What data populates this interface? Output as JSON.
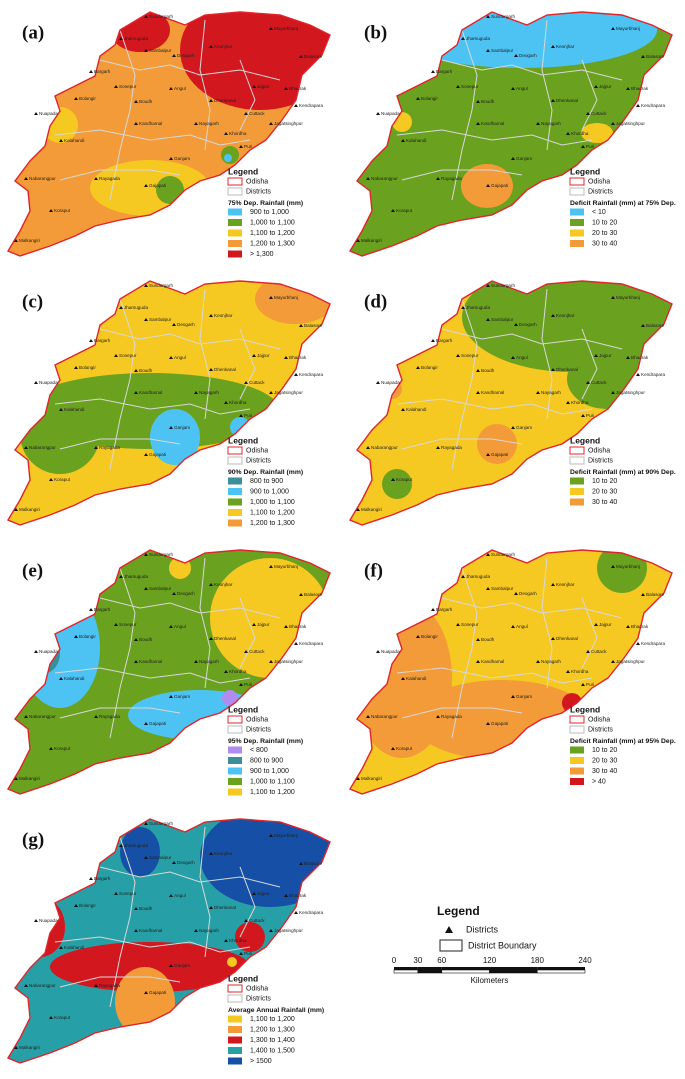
{
  "legend": {
    "title": "Legend",
    "odisha": "Odisha",
    "districts": "Districts"
  },
  "districts": [
    "Sundargarh",
    "Jharsuguda",
    "Sambalpur",
    "Deogarh",
    "Keonjhar",
    "Mayurbhanj",
    "Balasore",
    "Bargarh",
    "Sonepur",
    "Angul",
    "Dhenkanal",
    "Jajpur",
    "Bhadrak",
    "Kendrapara",
    "Bolangir",
    "Boudh",
    "Cuttack",
    "Jagatsinghpur",
    "Nuapada",
    "Kandhamal",
    "Nayagarh",
    "Khordha",
    "Puri",
    "Kalahandi",
    "Ganjam",
    "Nabarangpur",
    "Rayagada",
    "Gajapati",
    "Koraput",
    "Malkangiri"
  ],
  "panels": [
    {
      "label": "(a)",
      "title": "75% Dep. Rainfall (mm)",
      "classes": [
        {
          "label": "900 to 1,000",
          "color": "#4cc3f2"
        },
        {
          "label": "1,000 to 1,100",
          "color": "#6aa11f"
        },
        {
          "label": "1,100 to 1,200",
          "color": "#f6c922"
        },
        {
          "label": "1,200 to 1,300",
          "color": "#f29b38"
        },
        {
          "label": "> 1,300",
          "color": "#d3171f"
        }
      ]
    },
    {
      "label": "(b)",
      "title": "Deficit Rainfall (mm) at 75% Dep.",
      "classes": [
        {
          "label": "< 10",
          "color": "#4cc3f2"
        },
        {
          "label": "10 to 20",
          "color": "#6aa11f"
        },
        {
          "label": "20 to 30",
          "color": "#f6c922"
        },
        {
          "label": "30 to 40",
          "color": "#f29b38"
        }
      ]
    },
    {
      "label": "(c)",
      "title": "90% Dep. Rainfall (mm)",
      "classes": [
        {
          "label": "800 to 900",
          "color": "#3a8f9a"
        },
        {
          "label": "900 to 1,000",
          "color": "#4cc3f2"
        },
        {
          "label": "1,000 to 1,100",
          "color": "#6aa11f"
        },
        {
          "label": "1,100 to 1,200",
          "color": "#f6c922"
        },
        {
          "label": "1,200 to 1,300",
          "color": "#f29b38"
        }
      ]
    },
    {
      "label": "(d)",
      "title": "Deficit Rainfall (mm) at 90% Dep.",
      "classes": [
        {
          "label": "10 to 20",
          "color": "#6aa11f"
        },
        {
          "label": "20 to 30",
          "color": "#f6c922"
        },
        {
          "label": "30 to 40",
          "color": "#f29b38"
        }
      ]
    },
    {
      "label": "(e)",
      "title": "95% Dep. Rainfall (mm)",
      "classes": [
        {
          "label": "< 800",
          "color": "#b08cf0"
        },
        {
          "label": "800 to 900",
          "color": "#3a8f9a"
        },
        {
          "label": "900 to 1,000",
          "color": "#4cc3f2"
        },
        {
          "label": "1,000 to 1,100",
          "color": "#6aa11f"
        },
        {
          "label": "1,100 to 1,200",
          "color": "#f6c922"
        }
      ]
    },
    {
      "label": "(f)",
      "title": "Deficit Rainfall (mm) at 95% Dep.",
      "classes": [
        {
          "label": "10 to 20",
          "color": "#6aa11f"
        },
        {
          "label": "20 to 30",
          "color": "#f6c922"
        },
        {
          "label": "30 to 40",
          "color": "#f29b38"
        },
        {
          "label": "> 40",
          "color": "#d3171f"
        }
      ]
    },
    {
      "label": "(g)",
      "title": "Average Annual  Rainfall (mm)",
      "classes": [
        {
          "label": "1,100 to 1,200",
          "color": "#f6c922"
        },
        {
          "label": "1,200 to 1,300",
          "color": "#f29b38"
        },
        {
          "label": "1,300 to 1,400",
          "color": "#d3171f"
        },
        {
          "label": "1,400 to 1,500",
          "color": "#26a0a6"
        },
        {
          "label": "> 1500",
          "color": "#1550a6"
        }
      ]
    }
  ],
  "key": {
    "title": "Legend",
    "districts": "Districts",
    "boundary": "District Boundary",
    "scale_ticks": [
      0,
      30,
      60,
      120,
      180,
      240
    ],
    "unit": "Kilometers"
  }
}
